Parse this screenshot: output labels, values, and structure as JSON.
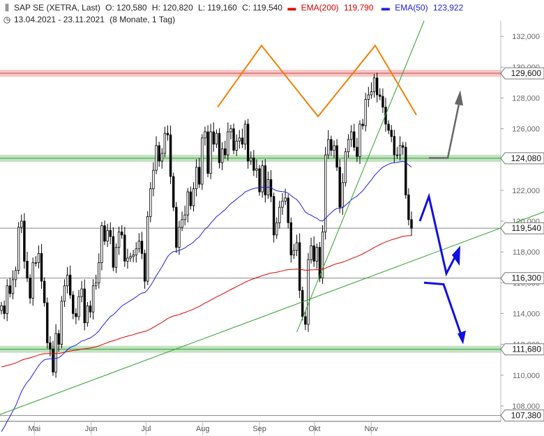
{
  "header": {
    "symbol_icon": "candlestick-icon",
    "title": "SAP SE (XETRA, Last)",
    "open": "O: 120,580",
    "high": "H: 120,820",
    "low": "L: 119,160",
    "close": "C: 119,540",
    "ema200_label": "EMA(200)",
    "ema200_value": "119,790",
    "ema50_label": "EMA(50)",
    "ema50_value": "123,922",
    "clock_icon": "clock-icon",
    "period": "13.04.2021 - 23.11.2021",
    "period_note": "(8 Monate, 1 Tag)"
  },
  "colors": {
    "ema200": "#e00000",
    "ema50": "#2020e0",
    "candle": "#000000",
    "resistance_band": "#e06060",
    "support_band": "#50b050",
    "trendline": "#30a030",
    "double_top": "#f08000",
    "arrow_up_gray": "#666666",
    "arrow_blue": "#1010e0",
    "level_line": "#888888"
  },
  "chart_data": {
    "type": "candlestick",
    "title": "SAP SE (XETRA, Last)",
    "xlabel": "",
    "ylabel": "",
    "date_range": [
      "2021-04-13",
      "2021-11-23"
    ],
    "ylim": [
      107000,
      133000
    ],
    "y_ticks": [
      108000,
      110000,
      112000,
      114000,
      116000,
      118000,
      120000,
      122000,
      124000,
      126000,
      128000,
      130000,
      132000
    ],
    "y_tick_labels": [
      "108,000",
      "110,000",
      "112,000",
      "114,000",
      "116,000",
      "118,000",
      "120,000",
      "122,000",
      "124,000",
      "126,000",
      "128,000",
      "130,000",
      "132,000"
    ],
    "x_tick_labels": [
      "Mai",
      "Jun",
      "Jul",
      "Aug",
      "Sep",
      "Okt",
      "Nov"
    ],
    "x_tick_dates": [
      "2021-05-01",
      "2021-06-01",
      "2021-07-01",
      "2021-08-01",
      "2021-09-01",
      "2021-10-01",
      "2021-11-01"
    ],
    "horizontal_levels": [
      {
        "value": 129600,
        "label": "129,600",
        "style": "resistance"
      },
      {
        "value": 124080,
        "label": "124,080",
        "style": "support"
      },
      {
        "value": 119540,
        "label": "119,540",
        "style": "last"
      },
      {
        "value": 116300,
        "label": "116,300",
        "style": "line"
      },
      {
        "value": 111680,
        "label": "111,680",
        "style": "support"
      },
      {
        "value": 107380,
        "label": "107,380",
        "style": "line"
      }
    ],
    "close_series": [
      114500,
      114000,
      115800,
      115300,
      116200,
      116800,
      119600,
      120000,
      117400,
      116300,
      115000,
      117300,
      117300,
      117900,
      116100,
      114700,
      112100,
      111700,
      110200,
      112700,
      112000,
      114800,
      115800,
      116500,
      115200,
      114000,
      113800,
      115100,
      115600,
      113400,
      114500,
      114100,
      115800,
      116000,
      117300,
      119700,
      118700,
      119400,
      119000,
      117000,
      118300,
      119300,
      119100,
      117400,
      117600,
      117700,
      117800,
      118200,
      118700,
      117900,
      116100,
      120300,
      122100,
      123300,
      124900,
      123900,
      124400,
      125700,
      125600,
      122900,
      120900,
      118300,
      119600,
      120100,
      120400,
      121900,
      121000,
      122100,
      123500,
      122400,
      125400,
      125800,
      123100,
      125800,
      125000,
      125700,
      123800,
      124700,
      124300,
      125800,
      126000,
      124600,
      125200,
      125400,
      125000,
      126300,
      123900,
      124100,
      123300,
      123400,
      121900,
      123600,
      121700,
      122700,
      121600,
      119100,
      119900,
      120900,
      121300,
      121500,
      119900,
      117800,
      118100,
      118600,
      115500,
      113800,
      113300,
      117500,
      118400,
      117400,
      118300,
      116300,
      119300,
      124300,
      125300,
      124600,
      124900,
      123500,
      120900,
      122500,
      124500,
      125300,
      125800,
      124800,
      124200,
      126300,
      126200,
      127900,
      128200,
      128400,
      129300,
      128200,
      128100,
      127400,
      126300,
      125900,
      125500,
      124300,
      124300,
      124900,
      124800,
      121700,
      120100,
      119540
    ],
    "series": [
      {
        "name": "EMA(200)",
        "last_value": 119790
      },
      {
        "name": "EMA(50)",
        "last_value": 123922
      }
    ],
    "annotations": [
      {
        "type": "double-top-pattern",
        "color": "orange"
      },
      {
        "type": "uptrend-line",
        "color": "green",
        "count": 2
      },
      {
        "type": "arrow-up",
        "color": "gray"
      },
      {
        "type": "arrow-path",
        "color": "blue",
        "count": 2
      }
    ]
  }
}
